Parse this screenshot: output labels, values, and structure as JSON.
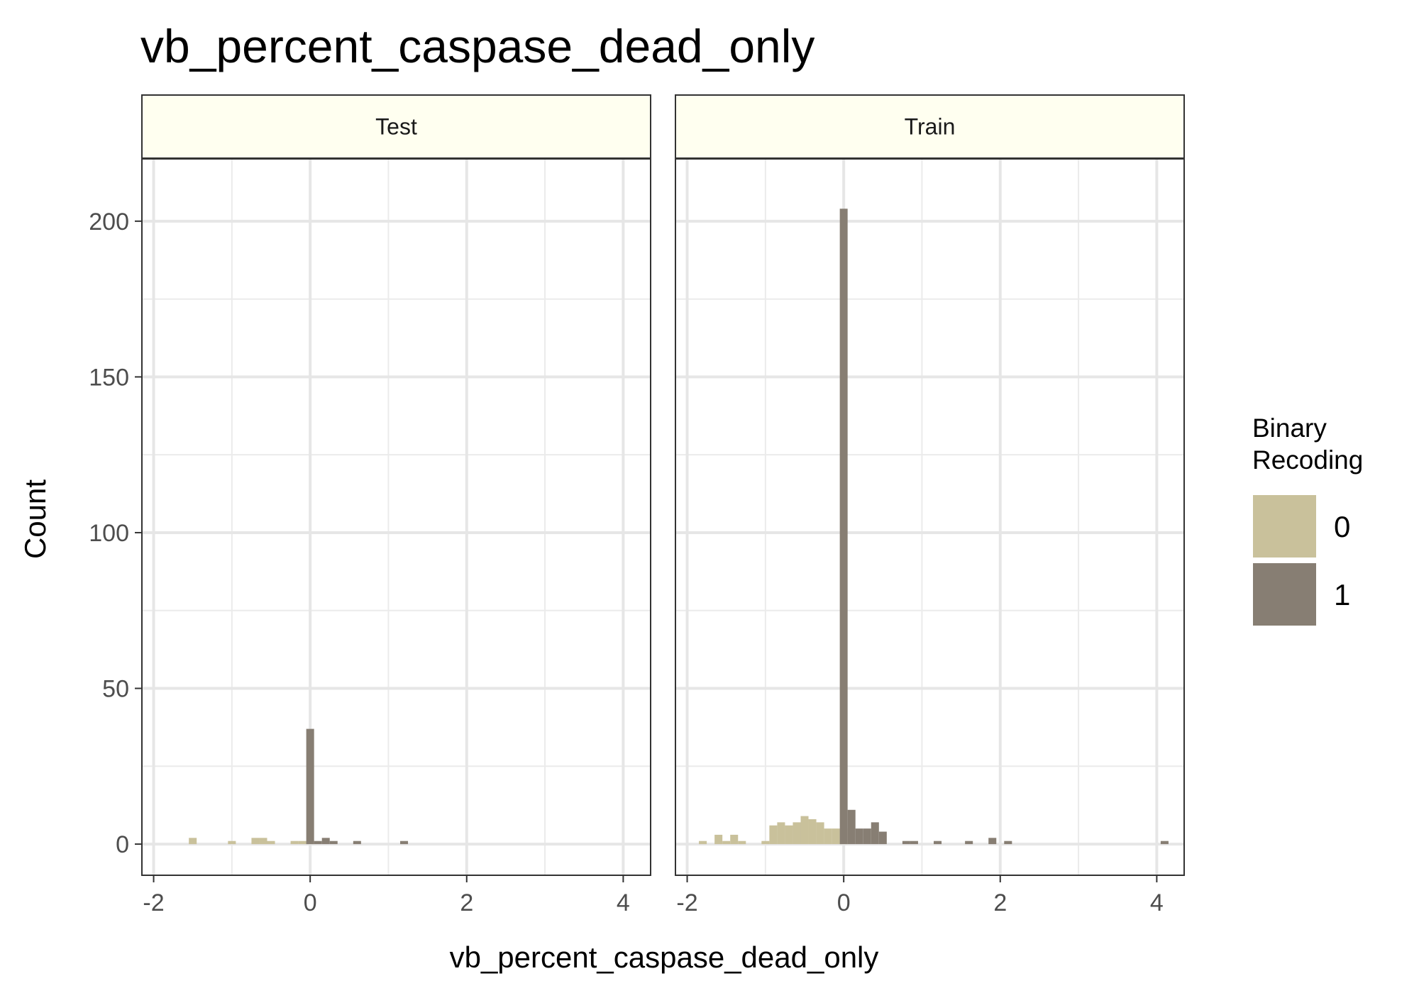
{
  "chart_data": {
    "type": "bar",
    "title": "vb_percent_caspase_dead_only",
    "xlabel": "vb_percent_caspase_dead_only",
    "ylabel": "Count",
    "xlim": [
      -2.15,
      4.35
    ],
    "ylim": [
      -10,
      220
    ],
    "x_ticks": [
      -2,
      0,
      2,
      4
    ],
    "y_ticks": [
      0,
      50,
      100,
      150,
      200
    ],
    "grid": true,
    "bin_width": 0.1,
    "legend": {
      "title_lines": [
        "Binary",
        "Recoding"
      ],
      "placement": "right",
      "entries": [
        {
          "label": "0",
          "color": "#c9c19b"
        },
        {
          "label": "1",
          "color": "#877e73"
        }
      ]
    },
    "panels": [
      {
        "name": "Test",
        "series": [
          {
            "name": "0",
            "color": "#c9c19b",
            "bins": [
              [
                -1.5,
                2
              ],
              [
                -1.0,
                1
              ],
              [
                -0.7,
                2
              ],
              [
                -0.6,
                2
              ],
              [
                -0.5,
                1
              ],
              [
                -0.2,
                1
              ],
              [
                -0.1,
                1
              ],
              [
                0.0,
                1
              ]
            ]
          },
          {
            "name": "1",
            "color": "#877e73",
            "bins": [
              [
                0.0,
                37
              ],
              [
                0.1,
                1
              ],
              [
                0.2,
                2
              ],
              [
                0.3,
                1
              ],
              [
                0.6,
                1
              ],
              [
                1.2,
                1
              ]
            ]
          }
        ]
      },
      {
        "name": "Train",
        "series": [
          {
            "name": "0",
            "color": "#c9c19b",
            "bins": [
              [
                -1.8,
                1
              ],
              [
                -1.6,
                3
              ],
              [
                -1.5,
                1
              ],
              [
                -1.4,
                3
              ],
              [
                -1.3,
                1
              ],
              [
                -1.0,
                1
              ],
              [
                -0.9,
                6
              ],
              [
                -0.8,
                7
              ],
              [
                -0.7,
                6
              ],
              [
                -0.6,
                7
              ],
              [
                -0.5,
                9
              ],
              [
                -0.4,
                8
              ],
              [
                -0.3,
                7
              ],
              [
                -0.2,
                5
              ],
              [
                -0.1,
                5
              ],
              [
                0.0,
                5
              ]
            ]
          },
          {
            "name": "1",
            "color": "#877e73",
            "bins": [
              [
                0.0,
                204
              ],
              [
                0.1,
                11
              ],
              [
                0.2,
                5
              ],
              [
                0.3,
                5
              ],
              [
                0.4,
                7
              ],
              [
                0.5,
                4
              ],
              [
                0.8,
                1
              ],
              [
                0.9,
                1
              ],
              [
                1.2,
                1
              ],
              [
                1.6,
                1
              ],
              [
                1.9,
                2
              ],
              [
                2.1,
                1
              ],
              [
                4.1,
                1
              ]
            ]
          }
        ]
      }
    ]
  }
}
